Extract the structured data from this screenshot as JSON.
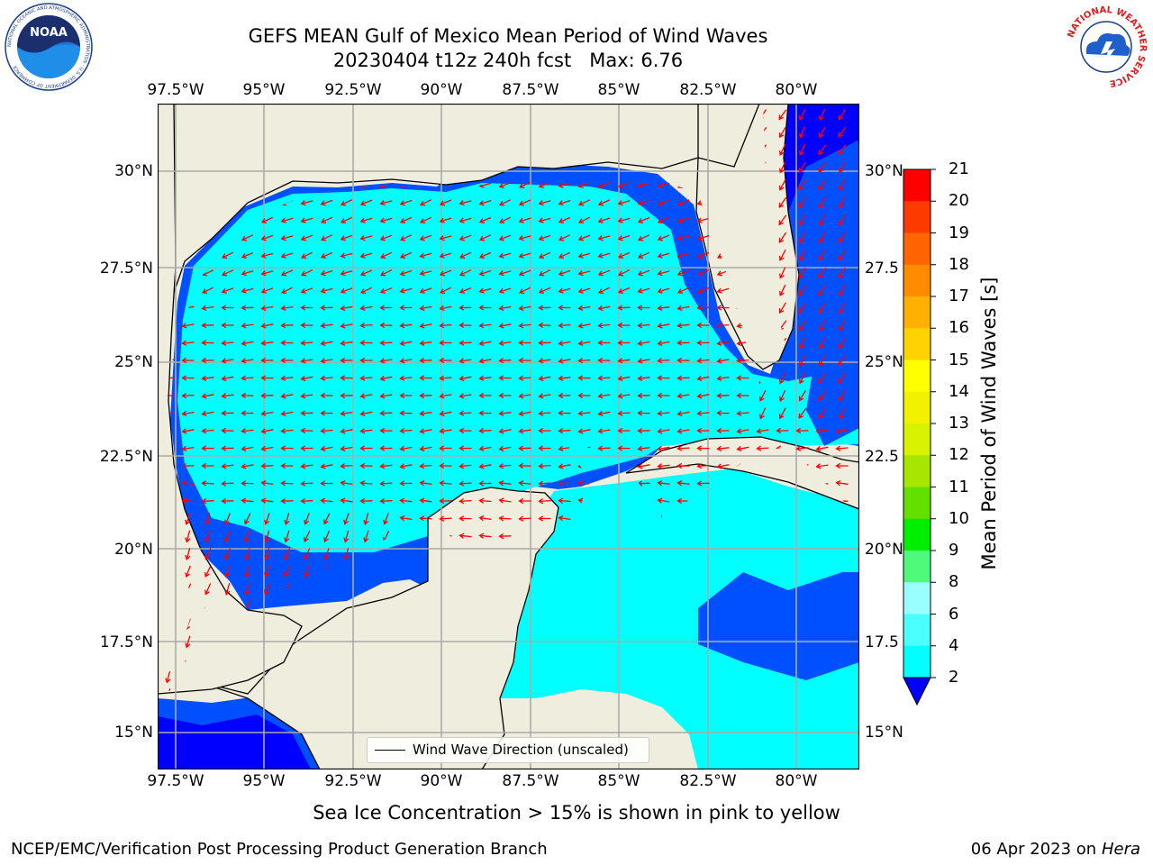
{
  "title": {
    "line1": "GEFS MEAN Gulf of Mexico Mean Period of Wind Waves",
    "line2": "20230404 t12z 240h fcst   Max: 6.76"
  },
  "map": {
    "lon_ticks": [
      "97.5°W",
      "95°W",
      "92.5°W",
      "90°W",
      "87.5°W",
      "85°W",
      "82.5°W",
      "80°W"
    ],
    "lat_ticks_left": [
      "30°N",
      "27.5°N",
      "25°N",
      "22.5°N",
      "20°N",
      "17.5°N",
      "15°N"
    ],
    "lat_ticks_right": [
      "30°N",
      "27.5",
      "25°N",
      "22.5",
      "20°N",
      "17.5",
      "15°N"
    ],
    "legend_label": "Wind Wave Direction (unscaled)",
    "land_color": "#efedde",
    "arrow_color": "#ff0000",
    "gridlines": true
  },
  "colorbar": {
    "label": "Mean Period of Wind Waves [s]",
    "ticks": [
      "2",
      "4",
      "6",
      "8",
      "9",
      "10",
      "11",
      "12",
      "13",
      "14",
      "15",
      "16",
      "17",
      "18",
      "19",
      "20",
      "21"
    ],
    "colors": [
      "#0050ff",
      "#00ffff",
      "#4cffff",
      "#99ffff",
      "#4dfa7c",
      "#00ee00",
      "#62e000",
      "#a6e600",
      "#d9f200",
      "#f2f200",
      "#ffff00",
      "#ffd300",
      "#ffb000",
      "#ff8c00",
      "#ff6500",
      "#ff3a00",
      "#ff0000"
    ],
    "extend_color": "#0000ff"
  },
  "subtitle": "Sea Ice Concentration > 15% is shown in pink to yellow",
  "footer": {
    "left": "NCEP/EMC/Verification Post Processing Product Generation Branch",
    "right_prefix": "06 Apr 2023 on ",
    "right_host": "Hera"
  },
  "logos": {
    "noaa_text": "NOAA",
    "noaa_ring": "NATIONAL OCEANIC AND ATMOSPHERIC ADMINISTRATION · U.S. DEPARTMENT OF COMMERCE",
    "nws_ring": "NATIONAL WEATHER SERVICE"
  }
}
